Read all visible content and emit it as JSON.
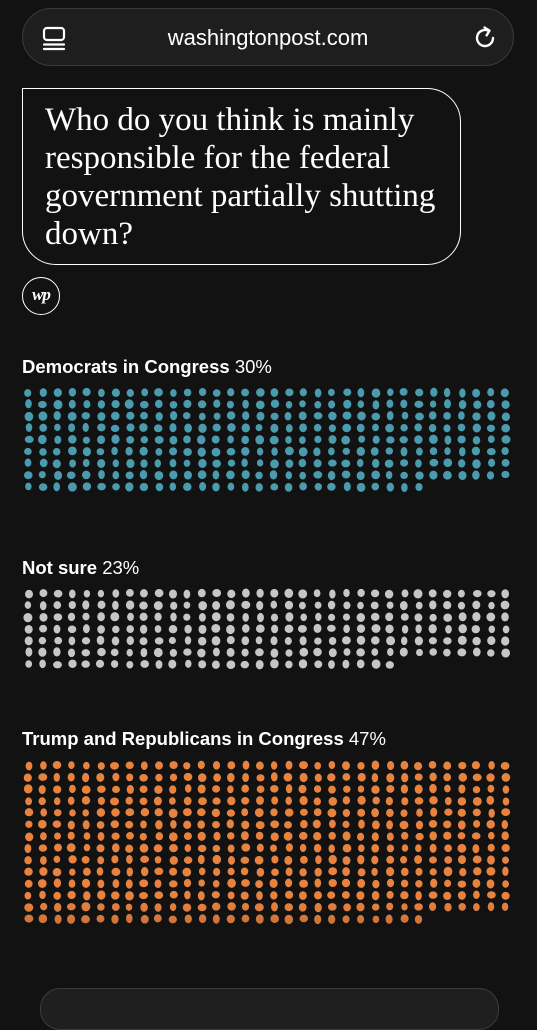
{
  "browser": {
    "url": "washingtonpost.com",
    "tabs_icon": "tabs-icon",
    "reload_icon": "reload-icon"
  },
  "question": "Who do you think is mainly responsible for the federal government partially shutting down?",
  "logo_text": "wp",
  "chart_data": {
    "type": "dot-matrix",
    "unit": "one dot per respondent",
    "series": [
      {
        "name": "Democrats in Congress",
        "percent": "30%",
        "value": 30,
        "color": "#4a9bad"
      },
      {
        "name": "Not sure",
        "percent": "23%",
        "value": 23,
        "color": "#c6c6c6"
      },
      {
        "name": "Trump and Republicans in Congress",
        "percent": "47%",
        "value": 47,
        "color": "#e8823f"
      }
    ]
  }
}
